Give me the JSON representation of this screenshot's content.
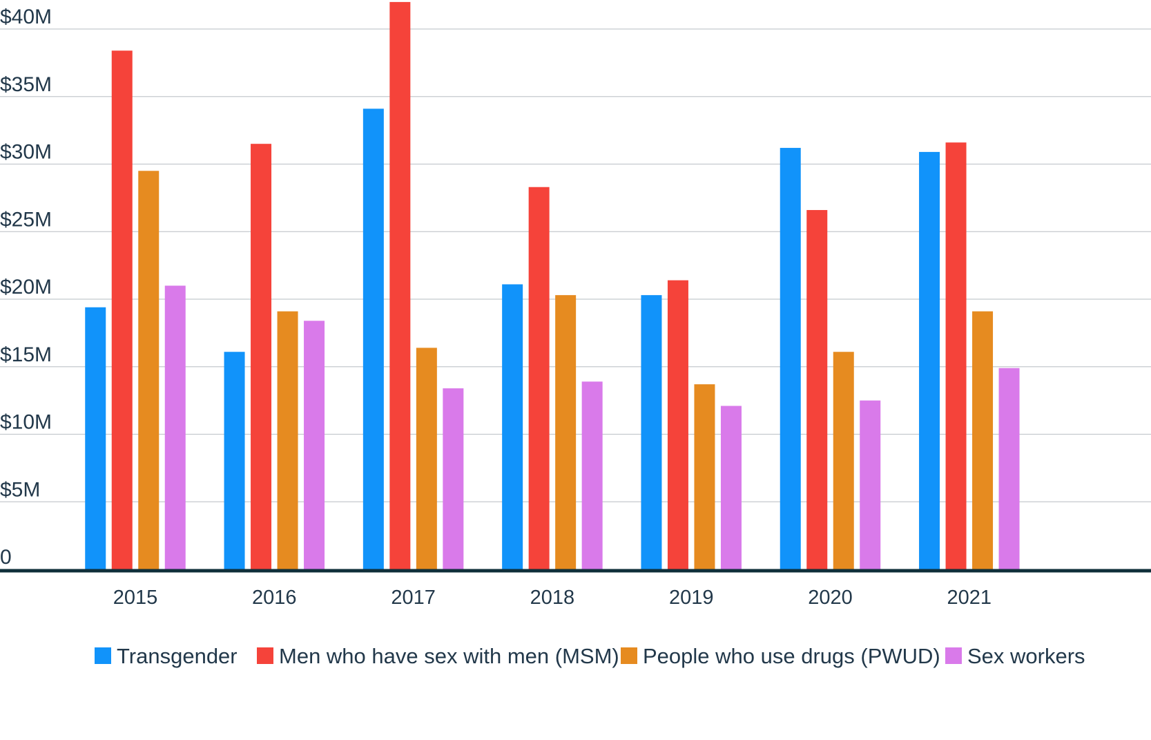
{
  "chart_data": {
    "type": "bar",
    "title": "",
    "xlabel": "",
    "ylabel": "",
    "categories": [
      "2015",
      "2016",
      "2017",
      "2018",
      "2019",
      "2020",
      "2021"
    ],
    "ylim": [
      0,
      40
    ],
    "yticks": [
      0,
      5,
      10,
      15,
      20,
      25,
      30,
      35,
      40
    ],
    "ytick_labels": [
      "0",
      "$5M",
      "$10M",
      "$15M",
      "$20M",
      "$25M",
      "$30M",
      "$35M",
      "$40M"
    ],
    "grid": true,
    "legend_position": "bottom",
    "series": [
      {
        "name": "Transgender",
        "color": "#1193fa",
        "values": [
          19.4,
          16.1,
          34.1,
          21.1,
          20.3,
          31.2,
          30.9
        ]
      },
      {
        "name": "Men who have sex with men (MSM)",
        "color": "#f5433a",
        "values": [
          38.4,
          31.5,
          42.0,
          28.3,
          21.4,
          26.6,
          31.6
        ]
      },
      {
        "name": "People who use drugs (PWUD)",
        "color": "#e68b20",
        "values": [
          29.5,
          19.1,
          16.4,
          20.3,
          13.7,
          16.1,
          19.1
        ]
      },
      {
        "name": "Sex workers",
        "color": "#d97aea",
        "values": [
          21.0,
          18.4,
          13.4,
          13.9,
          12.1,
          12.5,
          14.9
        ]
      }
    ]
  }
}
